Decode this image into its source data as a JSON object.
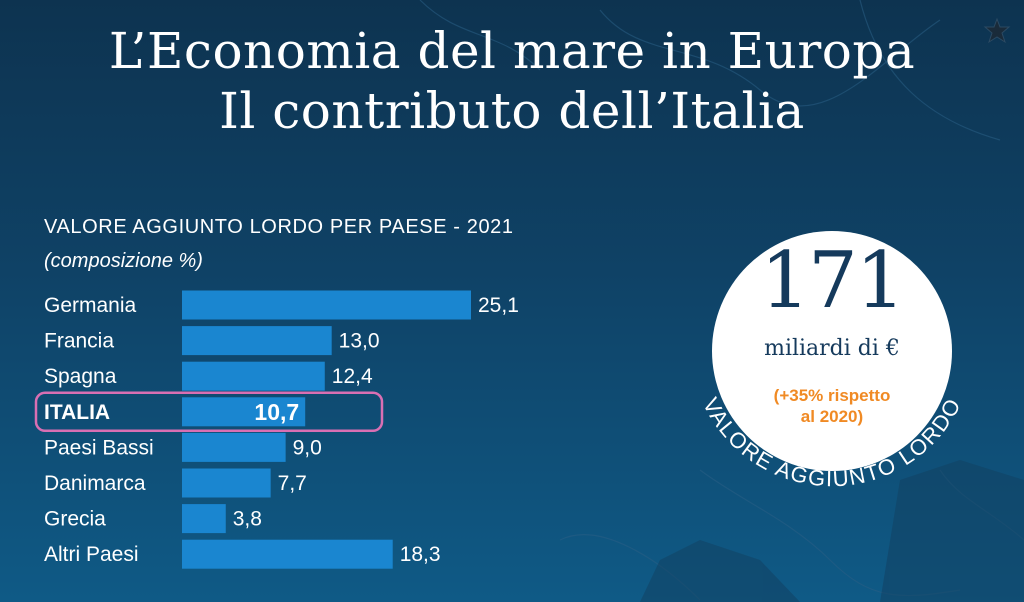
{
  "title_line1": "L’Economia del mare in Europa",
  "title_line2": "Il contributo dell’Italia",
  "subtitle": "VALORE AGGIUNTO LORDO PER PAESE - 2021",
  "subtitle_note": "(composizione %)",
  "badge": {
    "number": "171",
    "unit": "miliardi di €",
    "change_line1": "(+35% rispetto",
    "change_line2": "al 2020)",
    "arc_label": "VALORE AGGIUNTO LORDO"
  },
  "colors": {
    "bar": "#1a86d0",
    "highlight_outline": "#d96fb3",
    "change_text": "#f08a24",
    "badge_text": "#153a5c"
  },
  "chart_data": {
    "type": "bar",
    "orientation": "horizontal",
    "categories": [
      "Germania",
      "Francia",
      "Spagna",
      "ITALIA",
      "Paesi Bassi",
      "Danimarca",
      "Grecia",
      "Altri Paesi"
    ],
    "values": [
      25.1,
      13.0,
      12.4,
      10.7,
      9.0,
      7.7,
      3.8,
      18.3
    ],
    "value_labels": [
      "25,1",
      "13,0",
      "12,4",
      "10,7",
      "9,0",
      "7,7",
      "3,8",
      "18,3"
    ],
    "highlight": "ITALIA",
    "title": "VALORE AGGIUNTO LORDO PER PAESE - 2021",
    "subtitle": "(composizione %)"
  }
}
